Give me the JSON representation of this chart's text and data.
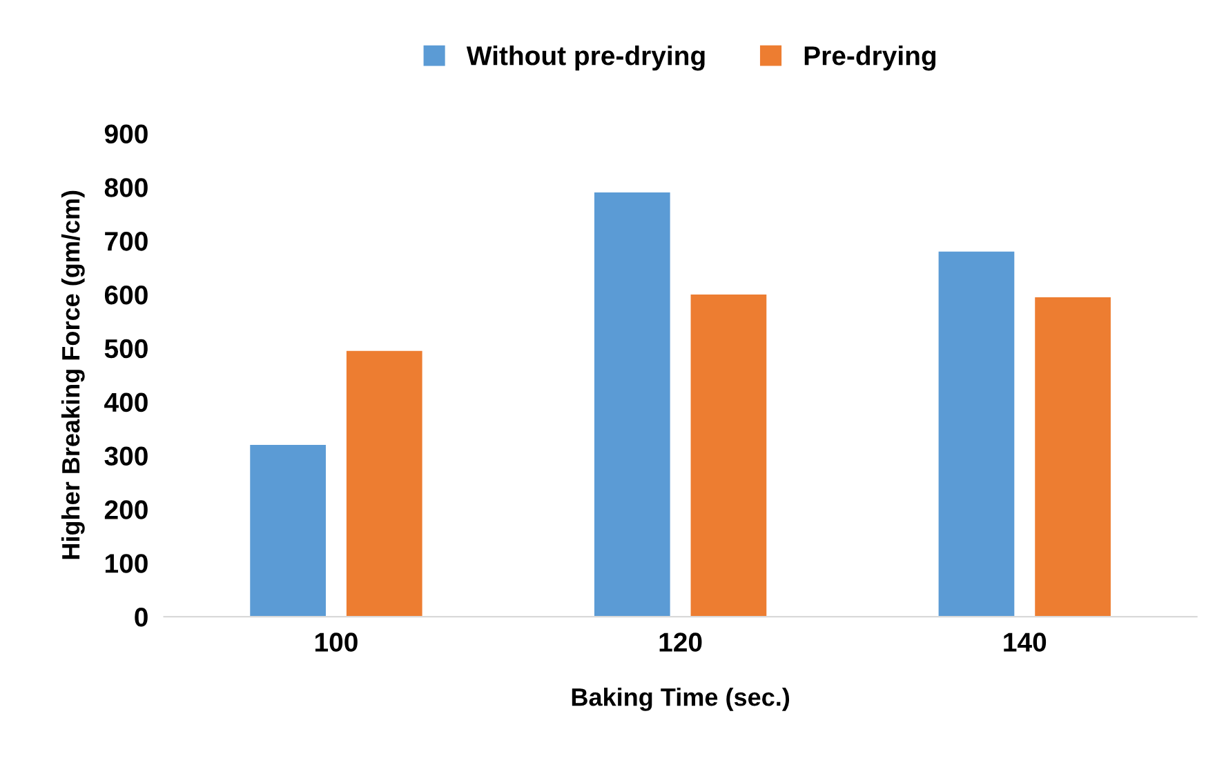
{
  "chart_data": {
    "type": "bar",
    "xlabel": "Baking Time (sec.)",
    "ylabel": "Higher Breaking Force (gm/cm)",
    "categories": [
      "100",
      "120",
      "140"
    ],
    "series": [
      {
        "name": "Without pre-drying",
        "color": "#5b9bd5",
        "values": [
          320,
          790,
          680
        ]
      },
      {
        "name": "Pre-drying",
        "color": "#ed7d31",
        "values": [
          495,
          600,
          595
        ]
      }
    ],
    "ylim": [
      0,
      900
    ],
    "yticks": [
      0,
      100,
      200,
      300,
      400,
      500,
      600,
      700,
      800,
      900
    ],
    "grid": false,
    "legend": "top"
  }
}
